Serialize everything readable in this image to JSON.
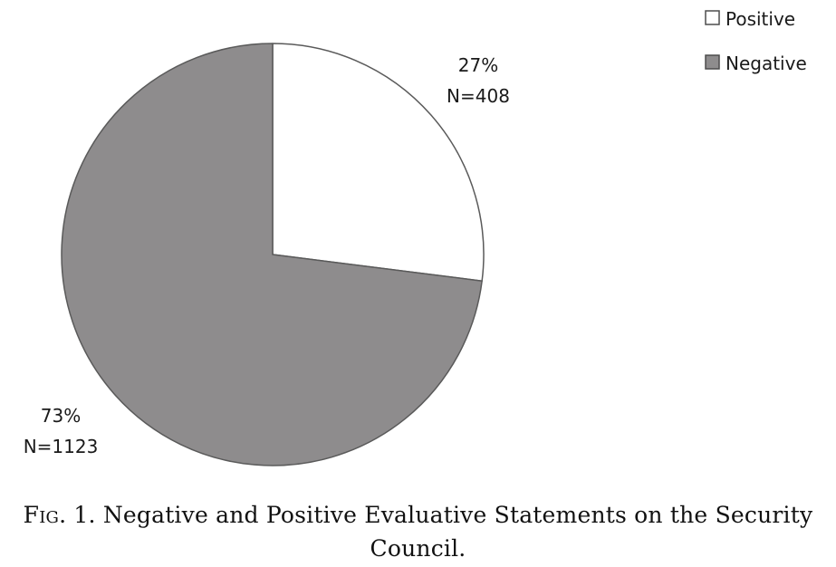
{
  "chart_data": {
    "type": "pie",
    "slices": [
      {
        "label": "Positive",
        "percent": 27,
        "percent_text": "27%",
        "n": 408,
        "n_text": "N=408",
        "color": "#ffffff"
      },
      {
        "label": "Negative",
        "percent": 73,
        "percent_text": "73%",
        "n": 1123,
        "n_text": "N=1123",
        "color": "#8e8c8d"
      }
    ],
    "legend_position": "top-right",
    "start_angle": "12 o'clock",
    "direction": "clockwise"
  },
  "caption": {
    "fig_label": "Fig. 1.",
    "text": "Negative and Positive Evaluative Statements on the Security Council."
  }
}
